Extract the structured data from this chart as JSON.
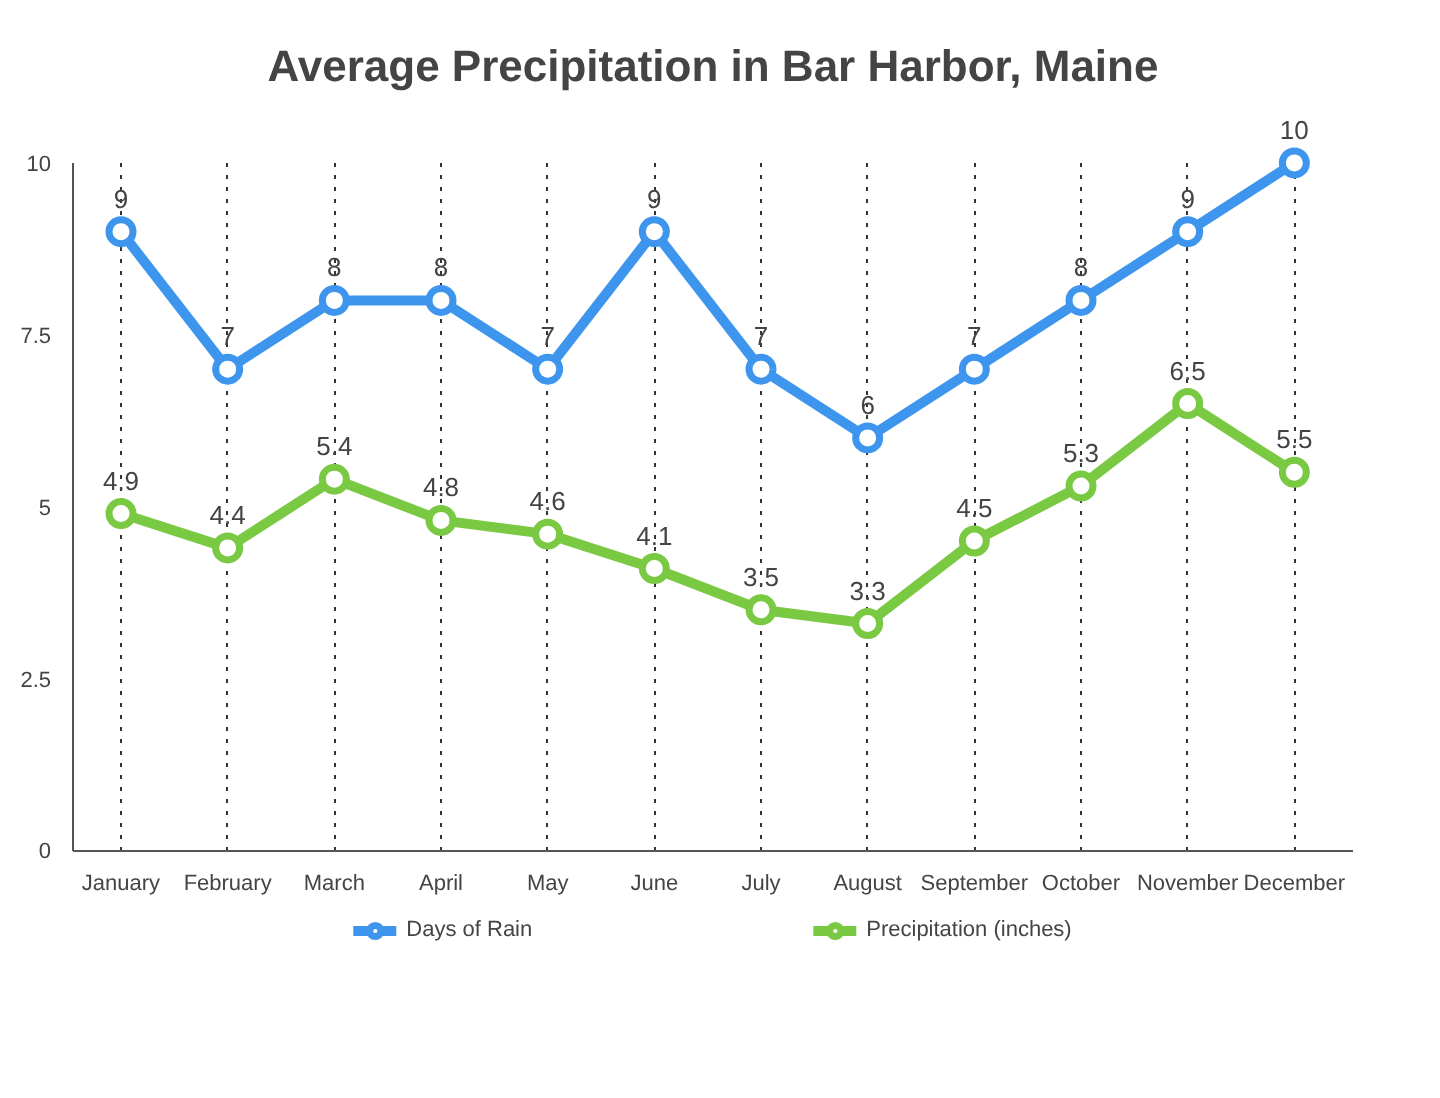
{
  "chart_data": {
    "type": "line",
    "title": "Average Precipitation in Bar Harbor, Maine",
    "categories": [
      "January",
      "February",
      "March",
      "April",
      "May",
      "June",
      "July",
      "August",
      "September",
      "October",
      "November",
      "December"
    ],
    "series": [
      {
        "name": "Days of Rain",
        "color": "#3d95ee",
        "values": [
          9,
          7,
          8,
          8,
          7,
          9,
          7,
          6,
          7,
          8,
          9,
          10
        ]
      },
      {
        "name": "Precipitation (inches)",
        "color": "#79c943",
        "values": [
          4.9,
          4.4,
          5.4,
          4.8,
          4.6,
          4.1,
          3.5,
          3.3,
          4.5,
          5.3,
          6.5,
          5.5
        ]
      }
    ],
    "ylim": [
      0,
      10
    ],
    "yticks": [
      0,
      2.5,
      5,
      7.5,
      10
    ],
    "grid": "x",
    "legend": "bottom",
    "marker": "circle",
    "line_style": "solid",
    "data_labels": true
  }
}
